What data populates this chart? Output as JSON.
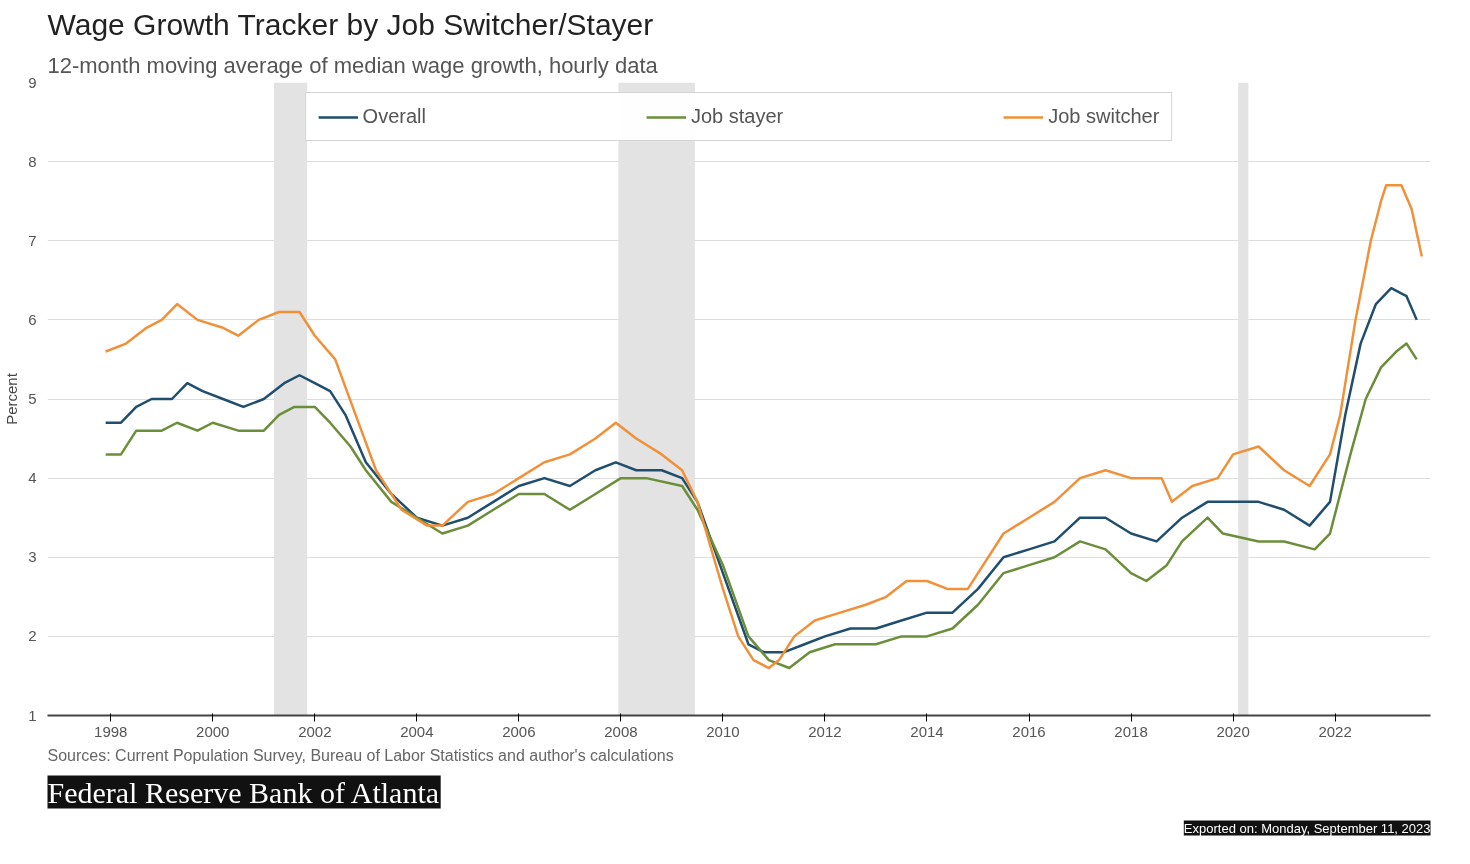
{
  "chart_data": {
    "type": "line",
    "title": "Wage Growth Tracker by Job Switcher/Stayer",
    "subtitle": "12-month moving average of median wage growth, hourly data",
    "ylabel": "Percent",
    "annotations": [
      "Sources: Current Population Survey, Bureau of Labor Statistics and author's calculations",
      "Federal Reserve Bank of Atlanta",
      "Exported on: Monday, September 11, 2023"
    ],
    "xlim": [
      1996.76,
      2023.87
    ],
    "ylim": [
      1,
      9
    ],
    "xticks": [
      1998,
      2000,
      2002,
      2004,
      2006,
      2008,
      2010,
      2012,
      2014,
      2016,
      2018,
      2020,
      2022
    ],
    "yticks": [
      1,
      2,
      3,
      4,
      5,
      6,
      7,
      8,
      9
    ],
    "grid": "y",
    "legend": "top",
    "line_style": "solid",
    "marker": "none",
    "bands": [
      {
        "axis": "x",
        "from": 2001.2,
        "to": 2001.85,
        "color": "#e3e3e3"
      },
      {
        "axis": "x",
        "from": 2007.95,
        "to": 2009.45,
        "color": "#e3e3e3"
      },
      {
        "axis": "x",
        "from": 2020.1,
        "to": 2020.3,
        "color": "#e3e3e3"
      }
    ],
    "series": [
      {
        "name": "Overall",
        "color": "#1f4e6e",
        "x": [
          1997.9,
          1998.2,
          1998.5,
          1998.8,
          1999.2,
          1999.5,
          1999.8,
          2000.2,
          2000.6,
          2001.0,
          2001.4,
          2001.7,
          2002.0,
          2002.3,
          2002.6,
          2003.0,
          2003.5,
          2004.0,
          2004.5,
          2005.0,
          2005.5,
          2006.0,
          2006.5,
          2007.0,
          2007.5,
          2007.9,
          2008.3,
          2008.8,
          2009.2,
          2009.5,
          2010.0,
          2010.5,
          2010.8,
          2011.2,
          2011.6,
          2012.0,
          2012.5,
          2013.0,
          2013.5,
          2014.0,
          2014.5,
          2015.0,
          2015.5,
          2016.0,
          2016.5,
          2017.0,
          2017.5,
          2018.0,
          2018.5,
          2019.0,
          2019.5,
          2020.0,
          2020.5,
          2021.0,
          2021.5,
          2021.9,
          2022.2,
          2022.5,
          2022.8,
          2023.1,
          2023.4,
          2023.6
        ],
        "values": [
          4.7,
          4.7,
          4.9,
          5.0,
          5.0,
          5.2,
          5.1,
          5.0,
          4.9,
          5.0,
          5.2,
          5.3,
          5.2,
          5.1,
          4.8,
          4.2,
          3.8,
          3.5,
          3.4,
          3.5,
          3.7,
          3.9,
          4.0,
          3.9,
          4.1,
          4.2,
          4.1,
          4.1,
          4.0,
          3.7,
          2.8,
          1.9,
          1.8,
          1.8,
          1.9,
          2.0,
          2.1,
          2.1,
          2.2,
          2.3,
          2.3,
          2.6,
          3.0,
          3.1,
          3.2,
          3.5,
          3.5,
          3.3,
          3.2,
          3.5,
          3.7,
          3.7,
          3.7,
          3.6,
          3.4,
          3.7,
          4.8,
          5.7,
          6.2,
          6.4,
          6.3,
          6.0
        ]
      },
      {
        "name": "Job stayer",
        "color": "#6b8e3a",
        "x": [
          1997.9,
          1998.2,
          1998.5,
          1999.0,
          1999.3,
          1999.7,
          2000.0,
          2000.5,
          2001.0,
          2001.3,
          2001.6,
          2002.0,
          2002.3,
          2002.7,
          2003.0,
          2003.5,
          2004.0,
          2004.5,
          2005.0,
          2005.5,
          2006.0,
          2006.5,
          2007.0,
          2007.5,
          2008.0,
          2008.5,
          2009.2,
          2009.5,
          2010.0,
          2010.5,
          2010.9,
          2011.3,
          2011.7,
          2012.2,
          2013.0,
          2013.5,
          2014.0,
          2014.5,
          2015.0,
          2015.5,
          2016.0,
          2016.5,
          2017.0,
          2017.5,
          2018.0,
          2018.3,
          2018.7,
          2019.0,
          2019.5,
          2019.8,
          2020.5,
          2021.0,
          2021.6,
          2021.9,
          2022.3,
          2022.6,
          2022.9,
          2023.2,
          2023.4,
          2023.6
        ],
        "values": [
          4.3,
          4.3,
          4.6,
          4.6,
          4.7,
          4.6,
          4.7,
          4.6,
          4.6,
          4.8,
          4.9,
          4.9,
          4.7,
          4.4,
          4.1,
          3.7,
          3.5,
          3.3,
          3.4,
          3.6,
          3.8,
          3.8,
          3.6,
          3.8,
          4.0,
          4.0,
          3.9,
          3.6,
          2.9,
          2.0,
          1.7,
          1.6,
          1.8,
          1.9,
          1.9,
          2.0,
          2.0,
          2.1,
          2.4,
          2.8,
          2.9,
          3.0,
          3.2,
          3.1,
          2.8,
          2.7,
          2.9,
          3.2,
          3.5,
          3.3,
          3.2,
          3.2,
          3.1,
          3.3,
          4.3,
          5.0,
          5.4,
          5.6,
          5.7,
          5.5
        ]
      },
      {
        "name": "Job switcher",
        "color": "#f0913a",
        "x": [
          1997.9,
          1998.3,
          1998.7,
          1999.0,
          1999.3,
          1999.7,
          2000.2,
          2000.5,
          2000.9,
          2001.3,
          2001.7,
          2002.0,
          2002.4,
          2002.8,
          2003.2,
          2003.7,
          2004.2,
          2004.5,
          2005.0,
          2005.5,
          2006.0,
          2006.5,
          2007.0,
          2007.5,
          2007.9,
          2008.3,
          2008.8,
          2009.2,
          2009.5,
          2010.0,
          2010.3,
          2010.6,
          2010.9,
          2011.1,
          2011.4,
          2011.8,
          2012.3,
          2012.8,
          2013.2,
          2013.6,
          2014.0,
          2014.4,
          2014.8,
          2015.0,
          2015.5,
          2016.0,
          2016.5,
          2017.0,
          2017.5,
          2018.0,
          2018.6,
          2018.8,
          2019.2,
          2019.7,
          2020.0,
          2020.5,
          2021.0,
          2021.5,
          2021.9,
          2022.1,
          2022.4,
          2022.7,
          2022.9,
          2023.0,
          2023.3,
          2023.5,
          2023.7
        ],
        "values": [
          5.6,
          5.7,
          5.9,
          6.0,
          6.2,
          6.0,
          5.9,
          5.8,
          6.0,
          6.1,
          6.1,
          5.8,
          5.5,
          4.8,
          4.1,
          3.6,
          3.4,
          3.4,
          3.7,
          3.8,
          4.0,
          4.2,
          4.3,
          4.5,
          4.7,
          4.5,
          4.3,
          4.1,
          3.7,
          2.6,
          2.0,
          1.7,
          1.6,
          1.7,
          2.0,
          2.2,
          2.3,
          2.4,
          2.5,
          2.7,
          2.7,
          2.6,
          2.6,
          2.8,
          3.3,
          3.5,
          3.7,
          4.0,
          4.1,
          4.0,
          4.0,
          3.7,
          3.9,
          4.0,
          4.3,
          4.4,
          4.1,
          3.9,
          4.3,
          4.8,
          6.0,
          7.0,
          7.5,
          7.7,
          7.7,
          7.4,
          6.8
        ]
      }
    ]
  }
}
